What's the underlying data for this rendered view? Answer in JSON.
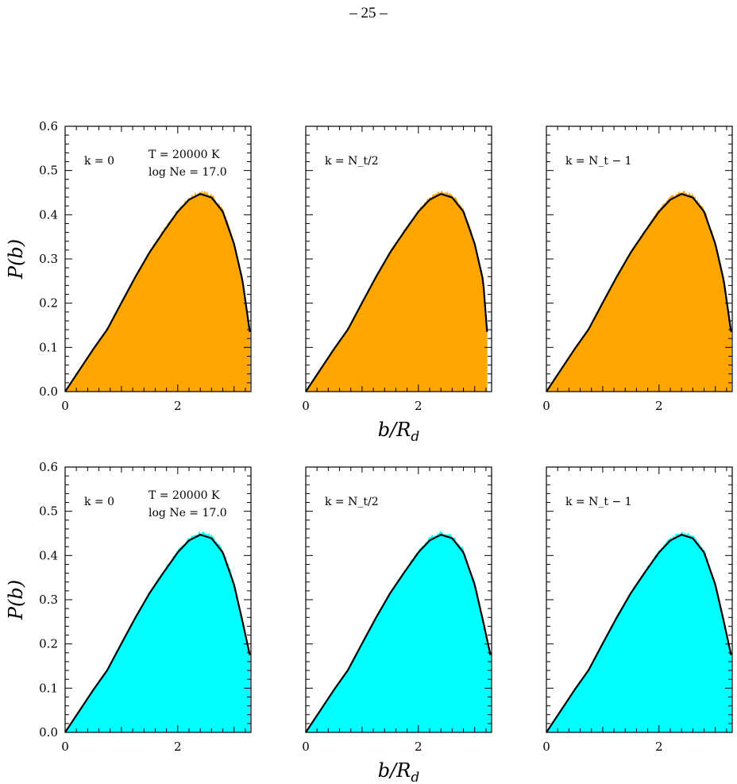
{
  "page_number": "– 25 –",
  "colors": {
    "top_fill": "#ffa500",
    "bottom_fill": "#00ffff",
    "curve": "#000000"
  },
  "chart_data": [
    {
      "type": "area",
      "panel_row": 0,
      "panel_col": 0,
      "xlim": [
        0,
        3.3
      ],
      "ylim": [
        0,
        0.6
      ],
      "xticks": [
        0,
        2
      ],
      "yticks": [
        0,
        0.1,
        0.2,
        0.3,
        0.4,
        0.5,
        0.6
      ],
      "xlabel": "",
      "ylabel": "P(b)",
      "annotations": {
        "k": "k = 0",
        "T": "T = 20000 K",
        "logNe": "log Ne = 17.0"
      },
      "model_curve": {
        "x": [
          0,
          0.25,
          0.5,
          0.75,
          1.0,
          1.25,
          1.5,
          1.75,
          2.0,
          2.2,
          2.4,
          2.6,
          2.8,
          3.0,
          3.15,
          3.28
        ],
        "y": [
          0,
          0.048,
          0.096,
          0.141,
          0.201,
          0.26,
          0.315,
          0.362,
          0.407,
          0.434,
          0.447,
          0.439,
          0.407,
          0.334,
          0.251,
          0.135
        ]
      },
      "histogram_fill": "#ffa500"
    },
    {
      "type": "area",
      "panel_row": 0,
      "panel_col": 1,
      "xlim": [
        0,
        3.3
      ],
      "ylim": [
        0,
        0.6
      ],
      "xticks": [
        0,
        2
      ],
      "yticks": [
        0,
        0.1,
        0.2,
        0.3,
        0.4,
        0.5,
        0.6
      ],
      "xlabel": "b/R_d",
      "ylabel": "",
      "annotations": {
        "k": "k = N_t/2"
      },
      "model_curve": {
        "x": [
          0,
          0.25,
          0.5,
          0.75,
          1.0,
          1.25,
          1.5,
          1.75,
          2.0,
          2.2,
          2.4,
          2.6,
          2.8,
          3.0,
          3.15,
          3.22
        ],
        "y": [
          0,
          0.048,
          0.096,
          0.141,
          0.201,
          0.26,
          0.315,
          0.362,
          0.407,
          0.434,
          0.447,
          0.439,
          0.407,
          0.334,
          0.251,
          0.135
        ]
      },
      "histogram_fill": "#ffa500"
    },
    {
      "type": "area",
      "panel_row": 0,
      "panel_col": 2,
      "xlim": [
        0,
        3.3
      ],
      "ylim": [
        0,
        0.6
      ],
      "xticks": [
        0,
        2
      ],
      "yticks": [
        0,
        0.1,
        0.2,
        0.3,
        0.4,
        0.5,
        0.6
      ],
      "xlabel": "",
      "ylabel": "",
      "annotations": {
        "k": "k = N_t − 1"
      },
      "model_curve": {
        "x": [
          0,
          0.25,
          0.5,
          0.75,
          1.0,
          1.25,
          1.5,
          1.75,
          2.0,
          2.2,
          2.4,
          2.6,
          2.8,
          3.0,
          3.15,
          3.28
        ],
        "y": [
          0,
          0.048,
          0.096,
          0.141,
          0.201,
          0.26,
          0.315,
          0.362,
          0.407,
          0.434,
          0.447,
          0.439,
          0.407,
          0.334,
          0.251,
          0.135
        ]
      },
      "histogram_fill": "#ffa500"
    },
    {
      "type": "area",
      "panel_row": 1,
      "panel_col": 0,
      "xlim": [
        0,
        3.3
      ],
      "ylim": [
        0,
        0.6
      ],
      "xticks": [
        0,
        2
      ],
      "yticks": [
        0,
        0.1,
        0.2,
        0.3,
        0.4,
        0.5,
        0.6
      ],
      "xlabel": "",
      "ylabel": "P(b)",
      "annotations": {
        "k": "k = 0",
        "T": "T = 20000 K",
        "logNe": "log Ne = 17.0"
      },
      "model_curve": {
        "x": [
          0,
          0.25,
          0.5,
          0.75,
          1.0,
          1.25,
          1.5,
          1.75,
          2.0,
          2.2,
          2.4,
          2.6,
          2.8,
          3.0,
          3.15,
          3.28
        ],
        "y": [
          0,
          0.048,
          0.096,
          0.141,
          0.201,
          0.26,
          0.315,
          0.362,
          0.407,
          0.434,
          0.447,
          0.439,
          0.407,
          0.334,
          0.251,
          0.175
        ]
      },
      "histogram_fill": "#00ffff"
    },
    {
      "type": "area",
      "panel_row": 1,
      "panel_col": 1,
      "xlim": [
        0,
        3.3
      ],
      "ylim": [
        0,
        0.6
      ],
      "xticks": [
        0,
        2
      ],
      "yticks": [
        0,
        0.1,
        0.2,
        0.3,
        0.4,
        0.5,
        0.6
      ],
      "xlabel": "b/R_d",
      "ylabel": "",
      "annotations": {
        "k": "k = N_t/2"
      },
      "model_curve": {
        "x": [
          0,
          0.25,
          0.5,
          0.75,
          1.0,
          1.25,
          1.5,
          1.75,
          2.0,
          2.2,
          2.4,
          2.6,
          2.8,
          3.0,
          3.15,
          3.28
        ],
        "y": [
          0,
          0.048,
          0.096,
          0.141,
          0.201,
          0.26,
          0.315,
          0.362,
          0.407,
          0.434,
          0.447,
          0.439,
          0.407,
          0.334,
          0.251,
          0.175
        ]
      },
      "histogram_fill": "#00ffff"
    },
    {
      "type": "area",
      "panel_row": 1,
      "panel_col": 2,
      "xlim": [
        0,
        3.3
      ],
      "ylim": [
        0,
        0.6
      ],
      "xticks": [
        0,
        2
      ],
      "yticks": [
        0,
        0.1,
        0.2,
        0.3,
        0.4,
        0.5,
        0.6
      ],
      "xlabel": "",
      "ylabel": "",
      "annotations": {
        "k": "k = N_t − 1"
      },
      "model_curve": {
        "x": [
          0,
          0.25,
          0.5,
          0.75,
          1.0,
          1.25,
          1.5,
          1.75,
          2.0,
          2.2,
          2.4,
          2.6,
          2.8,
          3.0,
          3.15,
          3.28
        ],
        "y": [
          0,
          0.048,
          0.096,
          0.141,
          0.201,
          0.26,
          0.315,
          0.362,
          0.407,
          0.434,
          0.447,
          0.439,
          0.407,
          0.334,
          0.251,
          0.175
        ]
      },
      "histogram_fill": "#00ffff"
    }
  ]
}
